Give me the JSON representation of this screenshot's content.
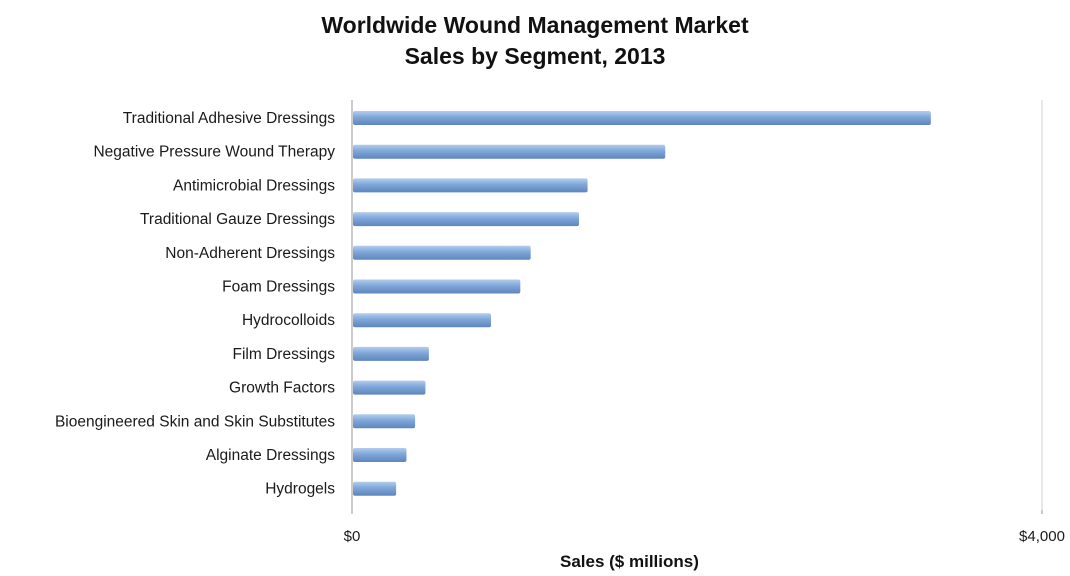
{
  "chart_data": {
    "type": "bar",
    "orientation": "horizontal",
    "title_lines": [
      "Worldwide Wound Management Market",
      "Sales by Segment, 2013"
    ],
    "xlabel": "Sales ($ millions)",
    "ylabel": "",
    "xlim": [
      0,
      4000
    ],
    "x_ticks": [
      "$0",
      "$4,000"
    ],
    "x_tick_values": [
      0,
      4000
    ],
    "grid": false,
    "legend": "none",
    "bar_color": "#7ea6d8",
    "bar_color_light": "#b3cdee",
    "bar_color_dark": "#5e86bd",
    "categories": [
      "Traditional Adhesive Dressings",
      "Negative Pressure Wound Therapy",
      "Antimicrobial Dressings",
      "Traditional Gauze Dressings",
      "Non-Adherent Dressings",
      "Foam Dressings",
      "Hydrocolloids",
      "Film Dressings",
      "Growth Factors",
      "Bioengineered Skin and Skin Substitutes",
      "Alginate Dressings",
      "Hydrogels"
    ],
    "values": [
      3350,
      1810,
      1360,
      1310,
      1030,
      970,
      800,
      440,
      420,
      360,
      310,
      250
    ]
  }
}
